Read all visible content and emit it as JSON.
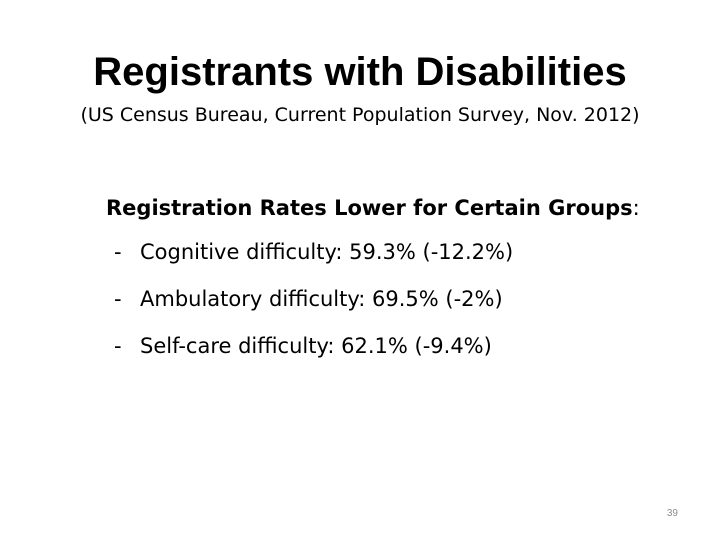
{
  "slide": {
    "title": "Registrants with Disabilities",
    "subtitle": "(US Census Bureau, Current Population Survey, Nov. 2012)",
    "heading_bold": "Registration Rates Lower for Certain Groups",
    "heading_suffix": ":",
    "bullet_marker": "-",
    "bullets": [
      "Cognitive difficulty: 59.3% (-12.2%)",
      "Ambulatory difficulty: 69.5% (-2%)",
      "Self-care difficulty: 62.1% (-9.4%)"
    ],
    "page_number": "39"
  }
}
